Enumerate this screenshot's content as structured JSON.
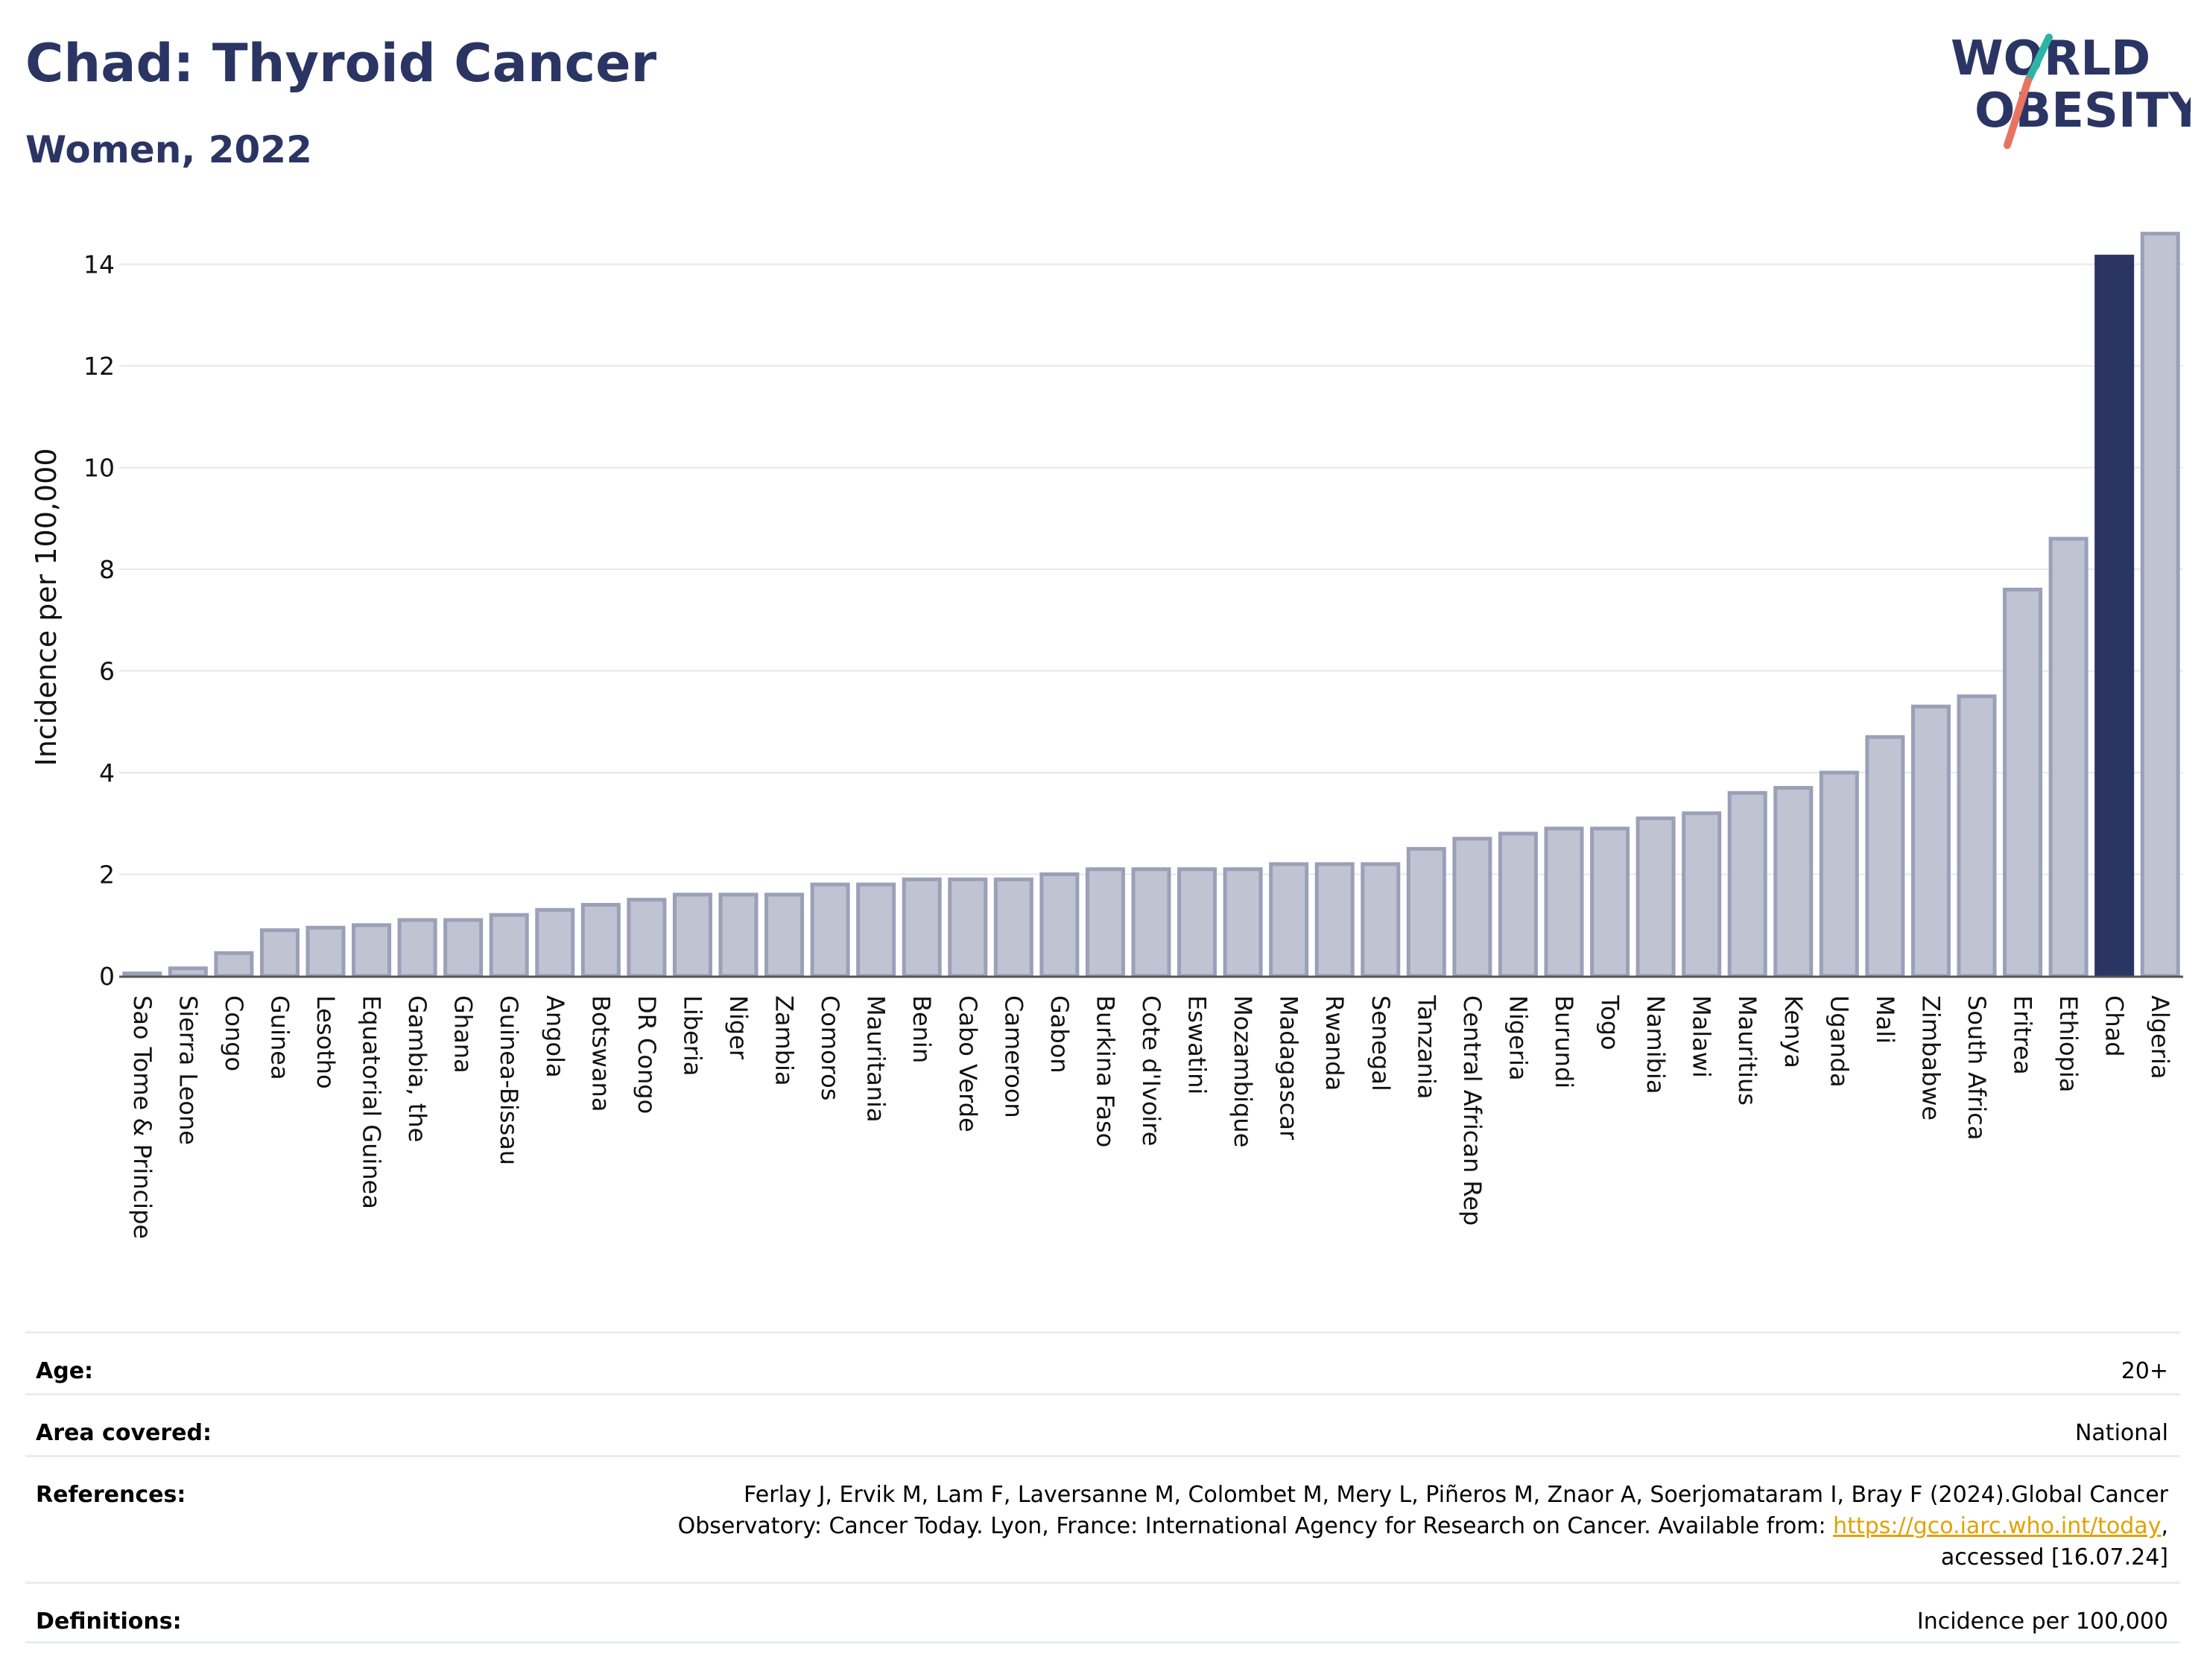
{
  "header": {
    "title": "Chad: Thyroid Cancer",
    "subtitle": "Women, 2022",
    "logo_line1": "WORLD",
    "logo_line2": "OBESITY"
  },
  "colors": {
    "highlight": "#2b3564",
    "bar_fill": "#c0c3d2",
    "bar_stroke": "#9aa0b8",
    "title": "#2b3564",
    "logo_slash_teal": "#2bb5a6",
    "logo_slash_red": "#e8735f"
  },
  "chart_data": {
    "type": "bar",
    "title": "",
    "xlabel": "",
    "ylabel": "Incidence per 100,000",
    "ylim": [
      0,
      14.8
    ],
    "yticks": [
      0,
      2,
      4,
      6,
      8,
      10,
      12,
      14
    ],
    "grid": true,
    "highlight_category": "Chad",
    "categories": [
      "Sao Tome & Principe",
      "Sierra Leone",
      "Congo",
      "Guinea",
      "Lesotho",
      "Equatorial Guinea",
      "Gambia, the",
      "Ghana",
      "Guinea-Bissau",
      "Angola",
      "Botswana",
      "DR Congo",
      "Liberia",
      "Niger",
      "Zambia",
      "Comoros",
      "Mauritania",
      "Benin",
      "Cabo Verde",
      "Cameroon",
      "Gabon",
      "Burkina Faso",
      "Cote d'Ivoire",
      "Eswatini",
      "Mozambique",
      "Madagascar",
      "Rwanda",
      "Senegal",
      "Tanzania",
      "Central African Rep",
      "Nigeria",
      "Burundi",
      "Togo",
      "Namibia",
      "Malawi",
      "Mauritius",
      "Kenya",
      "Uganda",
      "Mali",
      "Zimbabwe",
      "South Africa",
      "Eritrea",
      "Ethiopia",
      "Chad",
      "Algeria"
    ],
    "values": [
      0.05,
      0.15,
      0.45,
      0.9,
      0.95,
      1.0,
      1.1,
      1.1,
      1.2,
      1.3,
      1.4,
      1.5,
      1.6,
      1.6,
      1.6,
      1.8,
      1.8,
      1.9,
      1.9,
      1.9,
      2.0,
      2.1,
      2.1,
      2.1,
      2.1,
      2.2,
      2.2,
      2.2,
      2.5,
      2.7,
      2.8,
      2.9,
      2.9,
      3.1,
      3.2,
      3.6,
      3.7,
      4.0,
      4.7,
      5.3,
      5.5,
      7.6,
      8.6,
      14.15,
      14.6
    ]
  },
  "meta": {
    "age_label": "Age:",
    "age_value": "20+",
    "area_label": "Area covered:",
    "area_value": "National",
    "references_label": "References:",
    "references_line1": "Ferlay J, Ervik M, Lam F, Laversanne M, Colombet M, Mery L, Piñeros M, Znaor A, Soerjomataram I, Bray F (2024).Global Cancer",
    "references_line2": "Observatory: Cancer Today. Lyon, France: International Agency for Research on Cancer. Available from: ",
    "references_link": "https://gco.iarc.who.int/today",
    "references_line2_end": ",",
    "references_line3": "accessed [16.07.24]",
    "definitions_label": "Definitions:",
    "definitions_value": "Incidence per 100,000"
  }
}
